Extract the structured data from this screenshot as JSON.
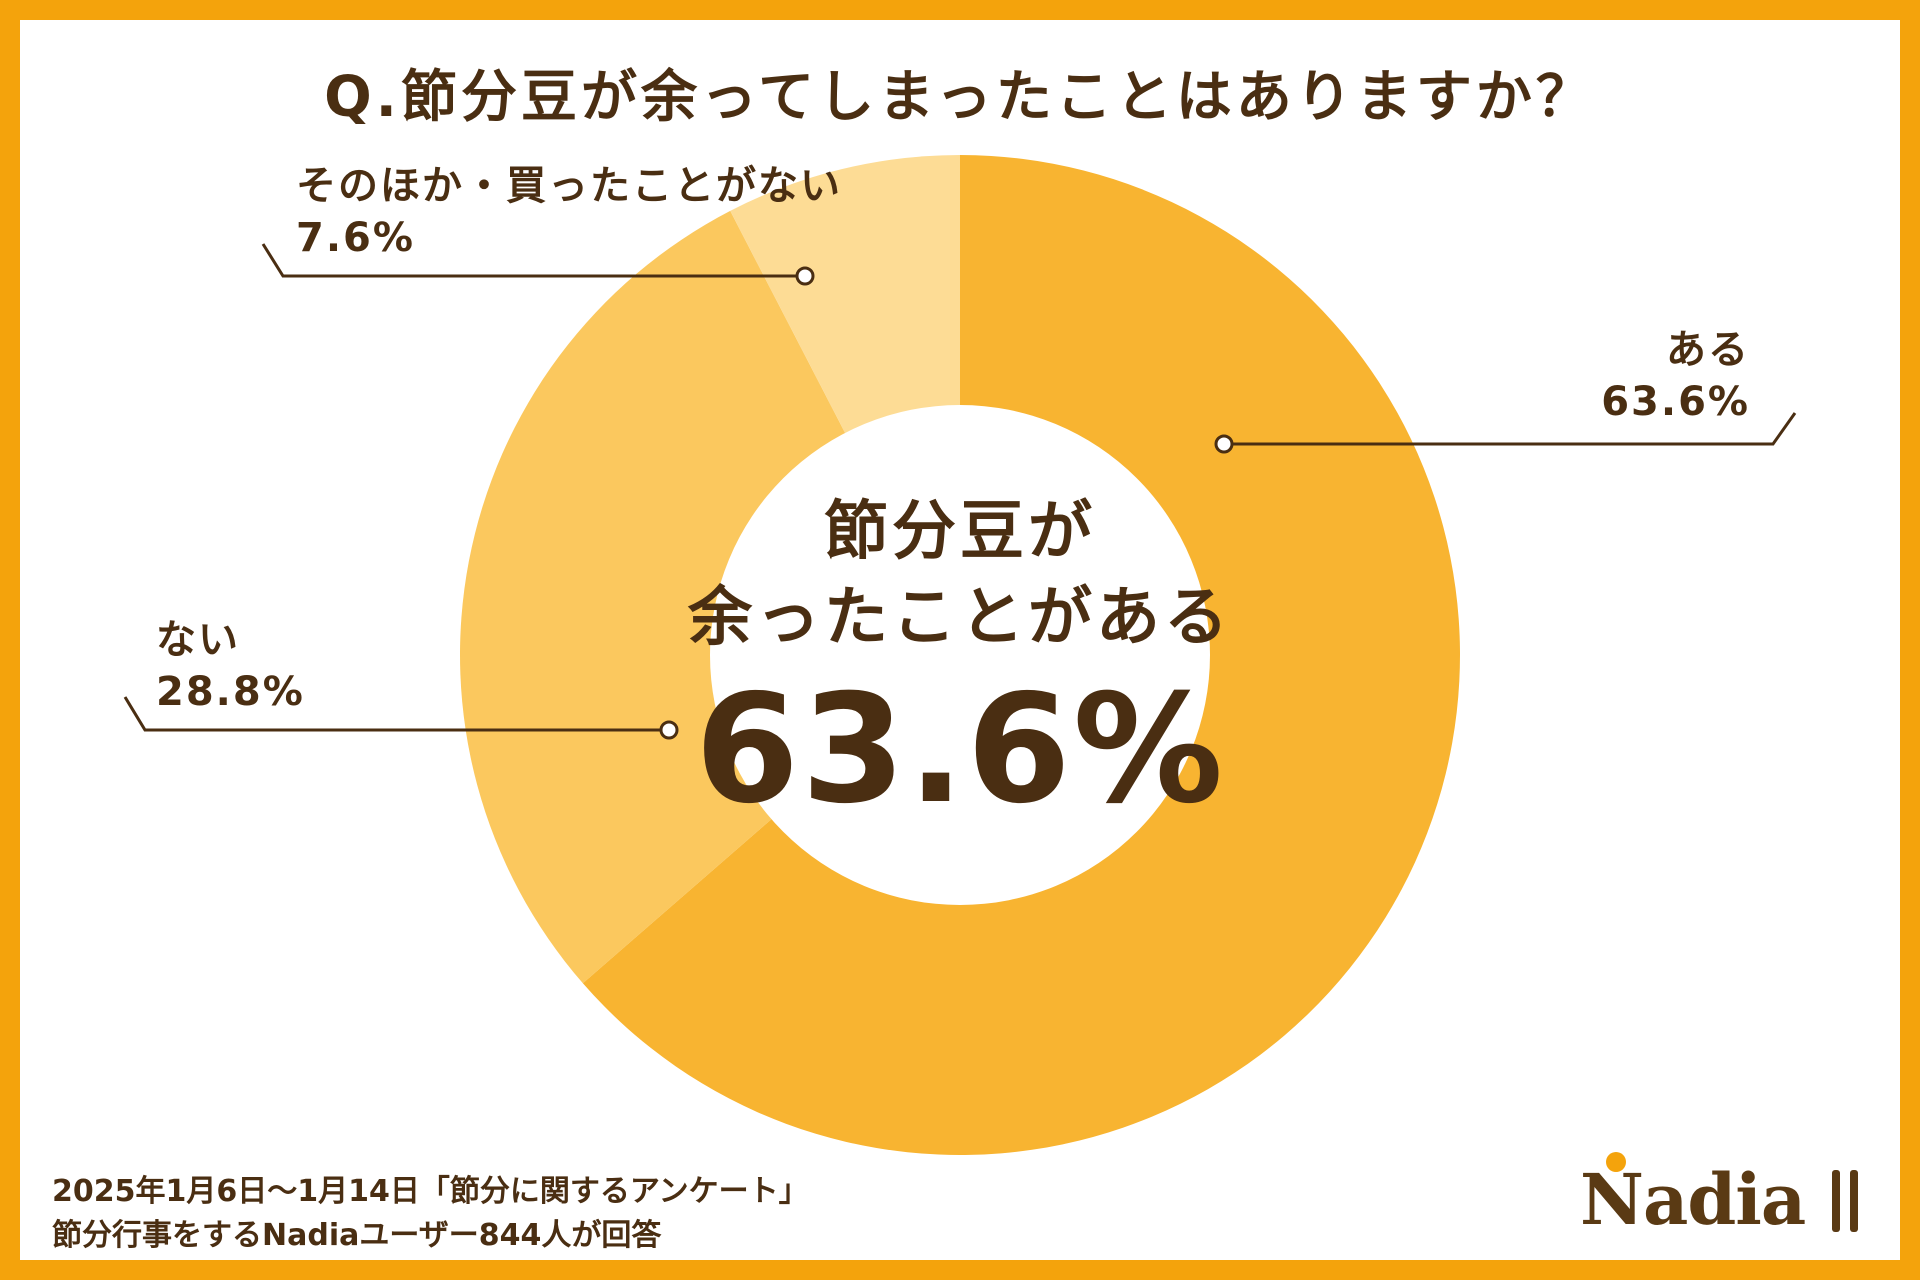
{
  "title": "Q.節分豆が余ってしまったことはありますか？",
  "center": {
    "line1": "節分豆が",
    "line2": "余ったことがある",
    "value": "63.6%"
  },
  "chart_data": {
    "type": "pie",
    "donut": true,
    "slices": [
      {
        "name": "ある",
        "value": 63.6,
        "label": "63.6%",
        "color": "#f8b431"
      },
      {
        "name": "ない",
        "value": 28.8,
        "label": "28.8%",
        "color": "#fbc85e"
      },
      {
        "name": "そのほか・買ったことがない",
        "value": 7.6,
        "label": "7.6%",
        "color": "#fddc95"
      }
    ],
    "start": "12 o'clock",
    "direction": "clockwise"
  },
  "footer": {
    "line1": "2025年1月6日〜1月14日「節分に関するアンケート」",
    "line2": "節分行事をするNadiaユーザー844人が回答"
  },
  "logo": {
    "text": "Nadia",
    "icon": "fork-spoon-icon"
  },
  "colors": {
    "frame": "#f4a30c",
    "text": "#4a2e12"
  }
}
